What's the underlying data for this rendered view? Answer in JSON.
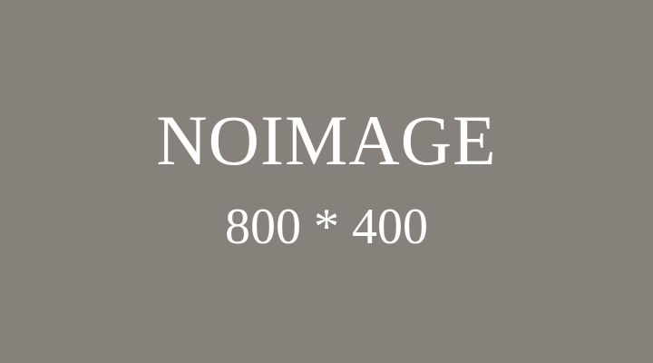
{
  "placeholder": {
    "title": "NOIMAGE",
    "dimensions": "800 * 400",
    "background_color": "#87817c",
    "text_color": "#ffffff"
  }
}
